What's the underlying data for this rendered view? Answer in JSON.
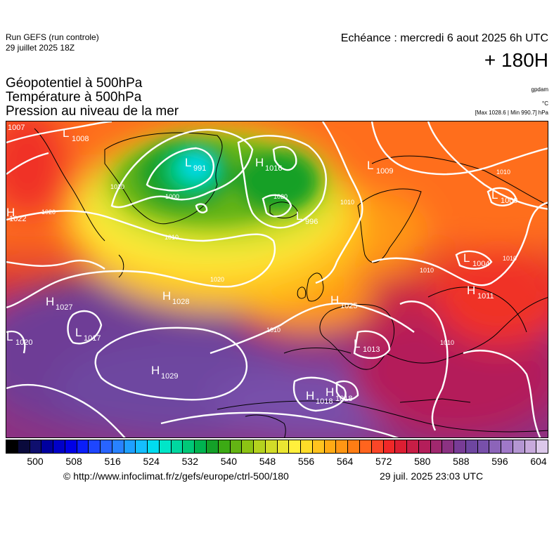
{
  "header": {
    "run_title": "Run GEFS (run controle)",
    "run_date": "29 juillet 2025 18Z",
    "echeance": "Echéance : mercredi 6 aout 2025 6h UTC",
    "lead_time": "+ 180H",
    "params": [
      "Géopotentiel à 500hPa",
      "Température à 500hPa",
      "Pression au niveau de la mer"
    ],
    "unit_geopotential": "gpdam",
    "unit_temperature": "°C",
    "max_min": "[Max 1028.6 | Min 990.7] hPa"
  },
  "pressure_centers": [
    {
      "type": "L",
      "value": "1007"
    },
    {
      "type": "L",
      "value": "1008"
    },
    {
      "type": "L",
      "value": "991"
    },
    {
      "type": "H",
      "value": "1016"
    },
    {
      "type": "L",
      "value": "1009"
    },
    {
      "type": "L",
      "value": "1009"
    },
    {
      "type": "H",
      "value": "1022"
    },
    {
      "type": "L",
      "value": "996"
    },
    {
      "type": "L",
      "value": "1004"
    },
    {
      "type": "H",
      "value": "1028"
    },
    {
      "type": "H",
      "value": "1027"
    },
    {
      "type": "H",
      "value": "1025"
    },
    {
      "type": "H",
      "value": "1011"
    },
    {
      "type": "L",
      "value": "1017"
    },
    {
      "type": "L",
      "value": "1020"
    },
    {
      "type": "L",
      "value": "1013"
    },
    {
      "type": "H",
      "value": "1029"
    },
    {
      "type": "H",
      "value": "1018"
    },
    {
      "type": "H",
      "value": "1018"
    }
  ],
  "isobar_labels": [
    "1010",
    "1000",
    "1020",
    "1010",
    "1020",
    "1010",
    "1010",
    "1020",
    "1010",
    "1010",
    "1010",
    "1010"
  ],
  "colorbar": {
    "colors": [
      "#000000",
      "#0a0a3c",
      "#0f0f6e",
      "#00009e",
      "#0000c8",
      "#0000e6",
      "#0a1efa",
      "#1e46ff",
      "#2864ff",
      "#2882ff",
      "#1ea0ff",
      "#14beff",
      "#00dcf0",
      "#00e6c8",
      "#00d7a0",
      "#00c878",
      "#00b450",
      "#14a028",
      "#3caa14",
      "#64b414",
      "#8cc314",
      "#b4d21e",
      "#d2dc28",
      "#ebe632",
      "#fff03c",
      "#ffdc28",
      "#ffc31e",
      "#ffaa14",
      "#ff9614",
      "#ff7d14",
      "#ff641e",
      "#fa4628",
      "#f02828",
      "#dc1e32",
      "#c81e46",
      "#b41e5a",
      "#a0286e",
      "#8c3282",
      "#783c96",
      "#6e46a0",
      "#7850aa",
      "#8c64b9",
      "#a078c8",
      "#b496d2",
      "#c8aadc",
      "#dcc8ea"
    ],
    "ticks": [
      "500",
      "508",
      "516",
      "524",
      "532",
      "540",
      "548",
      "556",
      "564",
      "572",
      "580",
      "588",
      "596",
      "604"
    ]
  },
  "footer": {
    "copyright": "© http://www.infoclimat.fr/z/gefs/europe/ctrl-500/180",
    "generated": "29 juil. 2025 23:03 UTC"
  }
}
